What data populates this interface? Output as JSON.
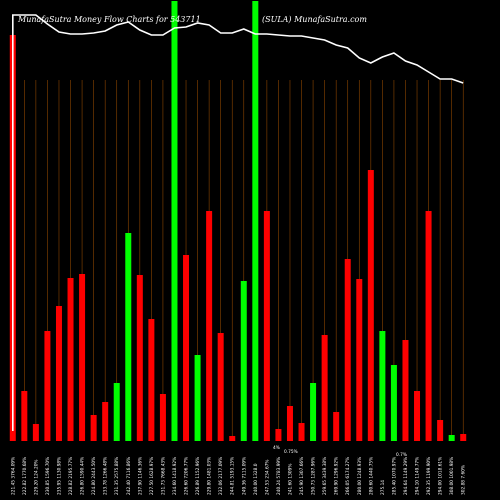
{
  "chart_data": {
    "type": "bar",
    "title_left": "MunafaSutra  Money Flow  Charts for 543711",
    "title_right": "(SULA) MunafaSutra.com",
    "ylim": [
      0,
      440
    ],
    "line_ylim": [
      0,
      440
    ],
    "grid": "vertical",
    "colors": {
      "up": "#00ff00",
      "down": "#ff0000",
      "background": "#000000",
      "grid": "#8b4500",
      "line": "#ffffff"
    },
    "categories": [
      "221.45 3764.09%",
      "222.82 1770.68%",
      "229.20 124.20%",
      "230.85 1596.70%",
      "235.95 1130.98%",
      "228.82 2195.77%",
      "226.80 1590.44%",
      "224.80 2443.50%",
      "233.78 1266.48%",
      "231.35 2575.88%",
      "242.40 7116.86%",
      "237.90 1146.36%",
      "227.50 1628.97%",
      "231.73 7668.43%",
      "234.60 1418.92%",
      "226.60 7206.77%",
      "226.89 1152.96%",
      "229.80 1481.03%",
      "232.06 2177.09%",
      "244.81 5193.15%",
      "249.36 7115.09%",
      "240.00 1328.0",
      "247.53 234.67%",
      "240.24 5783.99%",
      "241.60 1309%",
      "245.90 1307.66%",
      "250.73 1287.96%",
      "259.65 3439.38%",
      "269.90 1296.92%",
      "266.05 6174.27%",
      "280.00 1248.93%",
      "280.60 1440.75%",
      "275.14",
      "285.40 1070.97%",
      "294.64 1149.29%",
      "294.10 1149.77%",
      "292.35 1199.90%",
      "294.00 1018.61%",
      "308.00 1001.98%",
      "302.88 7.60%"
    ],
    "values": [
      406,
      50,
      17,
      110,
      135,
      163,
      167,
      26,
      39,
      58,
      208,
      166,
      122,
      47,
      440,
      186,
      86,
      230,
      108,
      5,
      160,
      440,
      230,
      12,
      35,
      18,
      58,
      106,
      29,
      182,
      162,
      271,
      110,
      76,
      101,
      50,
      230,
      21,
      6,
      7
    ],
    "directions": [
      "down",
      "down",
      "down",
      "down",
      "down",
      "down",
      "down",
      "down",
      "down",
      "up",
      "up",
      "down",
      "down",
      "down",
      "up",
      "down",
      "up",
      "down",
      "down",
      "down",
      "up",
      "up",
      "down",
      "down",
      "down",
      "down",
      "up",
      "down",
      "down",
      "down",
      "down",
      "down",
      "up",
      "up",
      "down",
      "down",
      "down",
      "down",
      "up",
      "down"
    ],
    "line_values": [
      426,
      426,
      426,
      417,
      409,
      407,
      407,
      408,
      410,
      416,
      419,
      411,
      406,
      406,
      413,
      414,
      418,
      416,
      408,
      408,
      412,
      407,
      407,
      406,
      405,
      405,
      403,
      401,
      396,
      393,
      383,
      378,
      384,
      388,
      380,
      376,
      369,
      362,
      362,
      358
    ],
    "annotations": [
      "4%",
      "0.75%",
      "0.7%"
    ]
  }
}
